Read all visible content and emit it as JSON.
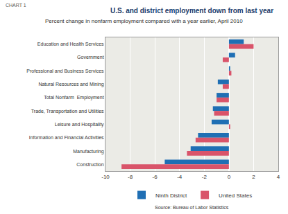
{
  "chart_data": {
    "type": "bar",
    "orientation": "horizontal",
    "title": "U.S. and district employment down from last year",
    "subtitle": "Percent change in nonfarm employment compared with a year earlier, April 2010",
    "annotations": [
      "CHART 1",
      "Source: Bureau of Labor Statistics"
    ],
    "categories": [
      "Education and Health Services",
      "Government",
      "Professional and Business Services",
      "Natural Resources and Mining",
      "Total Nonfarm  Employment",
      "Trade, Transportation and Utilities",
      "Leisure and Hospitality",
      "Information and Financial Activities",
      "Manufacturing",
      "Construction"
    ],
    "series": [
      {
        "name": "Ninth District",
        "color": "#1f6fb4",
        "values": [
          1.2,
          0.5,
          0.1,
          -0.9,
          -1.0,
          -1.3,
          -1.4,
          -2.5,
          -3.1,
          -5.2
        ]
      },
      {
        "name": "United States",
        "color": "#d9546a",
        "values": [
          2.0,
          -0.5,
          0.2,
          -0.5,
          -1.0,
          -1.2,
          0.1,
          -2.7,
          -3.4,
          -8.7
        ]
      }
    ],
    "xlim": [
      -10,
      4
    ],
    "xticks": [
      -10,
      -8,
      -6,
      -4,
      -2,
      0,
      2,
      4
    ],
    "grid": true,
    "legend": "bottom"
  }
}
